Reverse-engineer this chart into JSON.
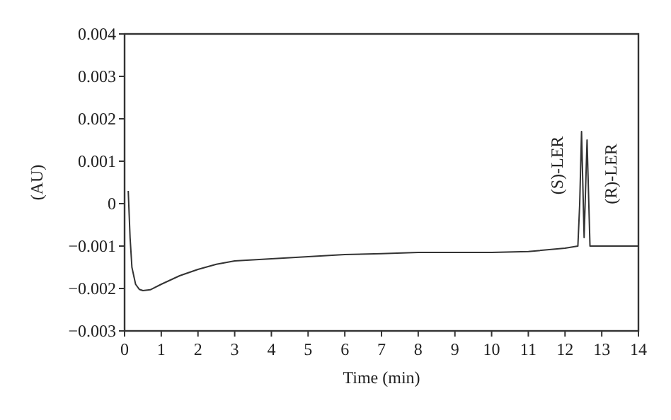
{
  "chart_data": {
    "type": "line",
    "xlabel": "Time (min)",
    "ylabel": "(AU)",
    "xlim": [
      0,
      14
    ],
    "xticks": [
      0,
      1,
      2,
      3,
      4,
      5,
      6,
      7,
      8,
      9,
      10,
      11,
      12,
      13,
      14
    ],
    "ylim": [
      -0.003,
      0.004
    ],
    "yticks": [
      {
        "value": -0.003,
        "label": "−0.003"
      },
      {
        "value": -0.002,
        "label": "−0.002"
      },
      {
        "value": -0.001,
        "label": "−0.001"
      },
      0,
      0.001,
      0.002,
      0.003,
      0.004
    ],
    "series": [
      {
        "color": "#333333",
        "x": [
          0.1,
          0.15,
          0.2,
          0.3,
          0.4,
          0.5,
          0.7,
          1,
          1.5,
          2,
          2.5,
          3,
          4,
          5,
          6,
          7,
          8,
          9,
          10,
          11,
          12,
          12.35,
          12.4,
          12.45,
          12.52,
          12.6,
          12.68,
          13,
          14
        ],
        "values": [
          0.0003,
          -0.0008,
          -0.0015,
          -0.0019,
          -0.00202,
          -0.00205,
          -0.00203,
          -0.0019,
          -0.0017,
          -0.00155,
          -0.00143,
          -0.00135,
          -0.0013,
          -0.00125,
          -0.0012,
          -0.00118,
          -0.00115,
          -0.00115,
          -0.00115,
          -0.00113,
          -0.00105,
          -0.001,
          0.0,
          0.0017,
          -0.0008,
          0.0015,
          -0.001,
          -0.001,
          -0.001
        ]
      }
    ],
    "annotations": [
      {
        "text": "(S)-LER",
        "x": 12.45,
        "y": 0.0017
      },
      {
        "text": "(R)-LER",
        "x": 12.6,
        "y": 0.0015
      }
    ],
    "grid": false,
    "marker": "none",
    "line_style": "solid"
  }
}
